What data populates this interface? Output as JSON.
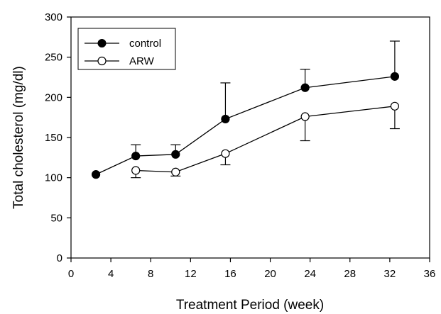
{
  "chart_data": {
    "type": "line",
    "xlabel": "Treatment Period (week)",
    "ylabel": "Total cholesterol (mg/dl)",
    "xlim": [
      0,
      36
    ],
    "ylim": [
      0,
      300
    ],
    "xticks": [
      "0",
      "4",
      "8",
      "12",
      "16",
      "20",
      "24",
      "28",
      "32",
      "36"
    ],
    "yticks": [
      "0",
      "50",
      "100",
      "150",
      "200",
      "250",
      "300"
    ],
    "grid": false,
    "legend_position": "top-left",
    "series": [
      {
        "name": "control",
        "marker": "filled-circle",
        "points": [
          {
            "x": 2.5,
            "y": 104,
            "err_up": 0,
            "err_down": 0
          },
          {
            "x": 6.5,
            "y": 127,
            "err_up": 14,
            "err_down": 0
          },
          {
            "x": 10.5,
            "y": 129,
            "err_up": 12,
            "err_down": 0
          },
          {
            "x": 15.5,
            "y": 173,
            "err_up": 45,
            "err_down": 0
          },
          {
            "x": 23.5,
            "y": 212,
            "err_up": 23,
            "err_down": 0
          },
          {
            "x": 32.5,
            "y": 226,
            "err_up": 44,
            "err_down": 0
          }
        ]
      },
      {
        "name": "ARW",
        "marker": "open-circle",
        "points": [
          {
            "x": 6.5,
            "y": 109,
            "err_up": 0,
            "err_down": 9
          },
          {
            "x": 10.5,
            "y": 107,
            "err_up": 0,
            "err_down": 5
          },
          {
            "x": 15.5,
            "y": 130,
            "err_up": 0,
            "err_down": 14
          },
          {
            "x": 23.5,
            "y": 176,
            "err_up": 0,
            "err_down": 30
          },
          {
            "x": 32.5,
            "y": 189,
            "err_up": 0,
            "err_down": 28
          }
        ]
      }
    ]
  }
}
